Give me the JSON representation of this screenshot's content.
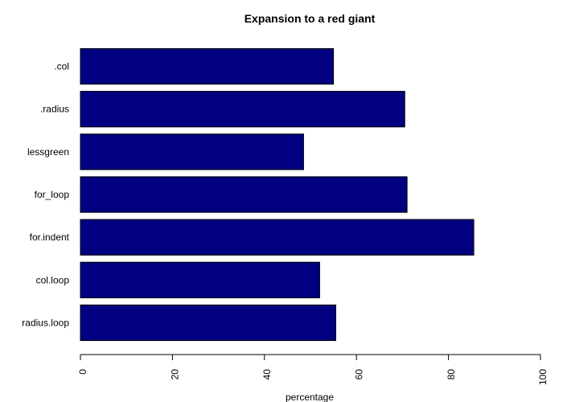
{
  "chart_data": {
    "type": "bar",
    "orientation": "horizontal",
    "title": "Expansion to a red giant",
    "xlabel": "percentage",
    "ylabel": "",
    "categories": [
      ".col",
      ".radius",
      "lessgreen",
      "for_loop",
      "for.indent",
      "col.loop",
      "radius.loop"
    ],
    "values": [
      55,
      70.5,
      48.5,
      71,
      85.5,
      52,
      55.5
    ],
    "xlim": [
      0,
      100
    ],
    "x_ticks": [
      "0",
      "20",
      "40",
      "60",
      "80",
      "100"
    ],
    "bar_color": "#000080",
    "bar_border_color": "#000000",
    "grid": false,
    "legend": "none"
  }
}
